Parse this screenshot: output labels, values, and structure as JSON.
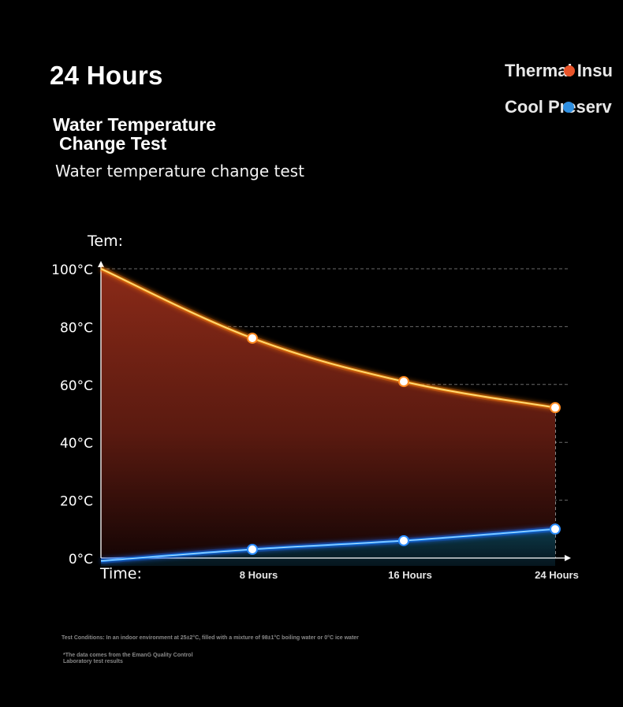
{
  "headline": "24 Hours",
  "title_line1": "Water Temperature",
  "title_line2": "Change Test",
  "subtitle": "Water temperature change test",
  "legend": {
    "hot_label": "Thermal Insu",
    "cold_label": "Cool Preserv",
    "hot_color": "#e8542a",
    "cold_color": "#2f8fe0"
  },
  "footnote_conditions": "Test Conditions: In an indoor environment at 25±2°C, filled with a mixture of 98±1°C boiling water or 0°C ice water",
  "footnote_source": "*The data comes from the EmanG Quality Control Laboratory test results",
  "chart_data": {
    "type": "area",
    "ylabel": "Tem:",
    "xlabel": "Time:",
    "x": [
      0,
      8,
      16,
      24
    ],
    "x_tick_labels": [
      "8 Hours",
      "16 Hours",
      "24 Hours"
    ],
    "x_tick_values": [
      8,
      16,
      24
    ],
    "y_tick_labels": [
      "100°C",
      "80°C",
      "60°C",
      "40°C",
      "20°C",
      "0°C"
    ],
    "y_tick_values": [
      100,
      80,
      60,
      40,
      20,
      0
    ],
    "ylim": [
      0,
      100
    ],
    "xlim": [
      0,
      24
    ],
    "grid": "horizontal dashed",
    "series": [
      {
        "values": [
          100,
          76,
          61,
          52
        ],
        "color": "#f5a623",
        "fill": "#8a2a18"
      },
      {
        "values": [
          -1,
          3,
          6,
          10
        ],
        "color": "#1e90ff",
        "fill": "#0d2a3a"
      }
    ]
  }
}
